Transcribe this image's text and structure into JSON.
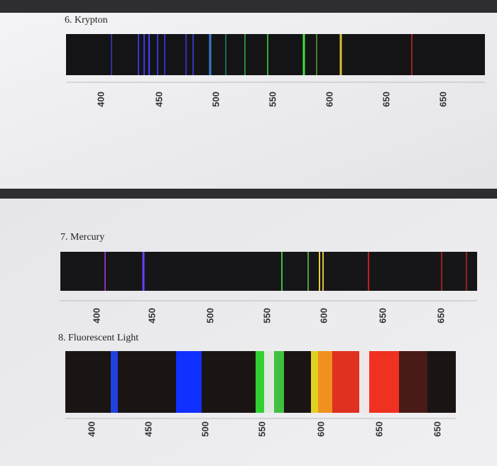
{
  "sections": [
    {
      "title": "6. Krypton",
      "scale": [
        "400",
        "450",
        "500",
        "550",
        "600",
        "650",
        "650"
      ]
    },
    {
      "title": "7. Mercury",
      "scale": [
        "400",
        "450",
        "500",
        "550",
        "600",
        "650",
        "650"
      ]
    },
    {
      "title": "8. Fluorescent Light",
      "scale": [
        "400",
        "450",
        "500",
        "550",
        "600",
        "650",
        "650"
      ]
    }
  ]
}
